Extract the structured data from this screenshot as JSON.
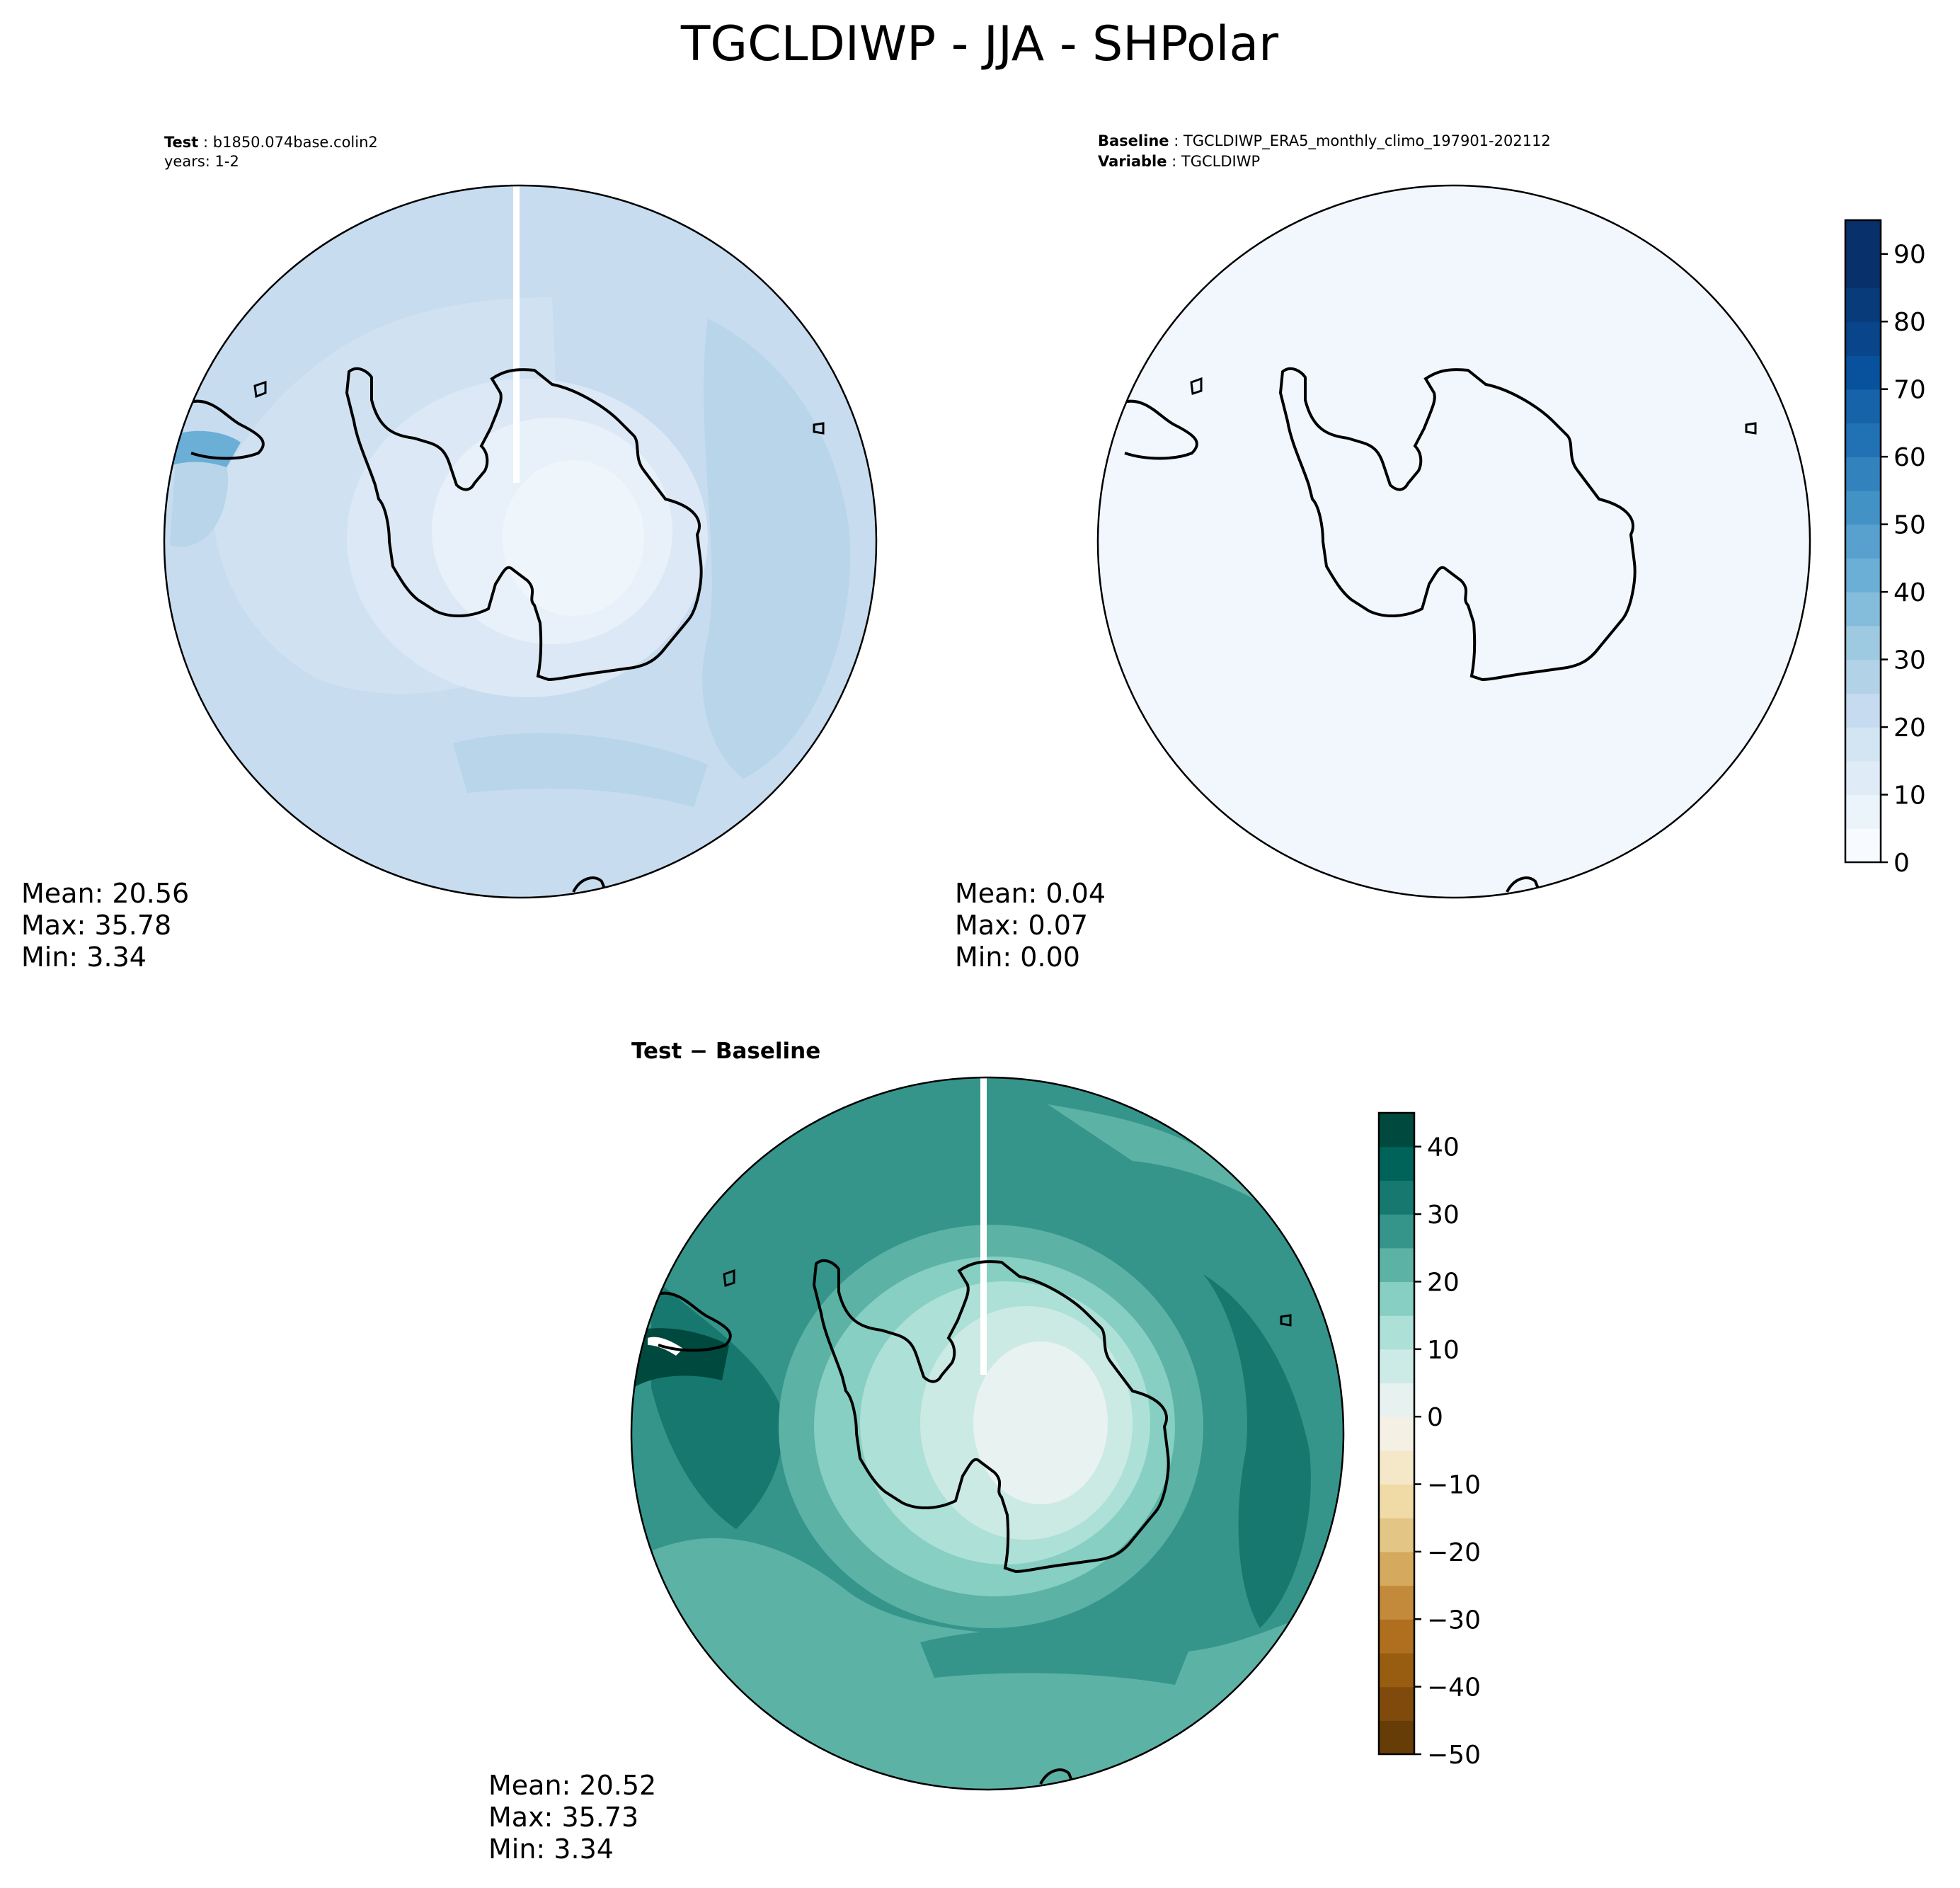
{
  "figure": {
    "title": "TGCLDIWP - JJA - SHPolar"
  },
  "chart_data": [
    {
      "type": "heatmap",
      "projection": "south-polar-stereographic",
      "panel": "test",
      "header": {
        "label": "Test",
        "case": "b1850.074base.colin2",
        "years": "years: 1-2"
      },
      "stats": {
        "mean": "Mean: 20.56",
        "max": "Max: 35.78",
        "min": "Min:  3.34"
      },
      "value_range": [
        3.34,
        35.78
      ],
      "colormap": "Blues",
      "colorbar": "shared"
    },
    {
      "type": "heatmap",
      "projection": "south-polar-stereographic",
      "panel": "baseline",
      "header": {
        "label": "Baseline",
        "case": "TGCLDIWP_ERA5_monthly_climo_197901-202112",
        "var_label": "Variable",
        "variable": "TGCLDIWP"
      },
      "stats": {
        "mean": "Mean:  0.04",
        "max": "Max:  0.07",
        "min": "Min:  0.00"
      },
      "value_range": [
        0.0,
        0.07
      ],
      "colormap": "Blues",
      "colorbar": {
        "range": [
          0,
          95
        ],
        "levels": 19,
        "ticks": [
          "0",
          "10",
          "20",
          "30",
          "40",
          "50",
          "60",
          "70",
          "80",
          "90"
        ],
        "colors": [
          "#f7fbff",
          "#ebf3fb",
          "#dfecf7",
          "#d3e4f3",
          "#c6dbef",
          "#b2d2e8",
          "#9ecae1",
          "#84bcdb",
          "#6baed6",
          "#58a1cf",
          "#4292c6",
          "#3282be",
          "#2171b5",
          "#1663aa",
          "#08519c",
          "#08458a",
          "#083b7a",
          "#08306b",
          "#08306b"
        ]
      }
    },
    {
      "type": "heatmap",
      "projection": "south-polar-stereographic",
      "panel": "difference",
      "header": {
        "title": "Test − Baseline"
      },
      "stats": {
        "mean": "Mean: 20.52",
        "max": "Max: 35.73",
        "min": "Min:  3.34"
      },
      "value_range": [
        3.34,
        35.73
      ],
      "colormap": "BrBG",
      "colorbar": {
        "range": [
          -50,
          45
        ],
        "levels": 19,
        "ticks": [
          "40",
          "30",
          "20",
          "10",
          "0",
          "−10",
          "−20",
          "−30",
          "−40",
          "−50"
        ],
        "colors": [
          "#663c07",
          "#7f4a0c",
          "#995d12",
          "#b06f1e",
          "#c38a3b",
          "#d5a95e",
          "#e3c685",
          "#f0dba6",
          "#f5e8c8",
          "#f5f0e4",
          "#e7f1ef",
          "#cdebe6",
          "#ade0d7",
          "#86cfc2",
          "#5cb2a5",
          "#35958a",
          "#17786f",
          "#00635a",
          "#00493e"
        ]
      }
    }
  ],
  "colors": {
    "test_palette": [
      "#e8f1fa",
      "#dce8f5",
      "#d0e2f2",
      "#c7dcef",
      "#b8d5ea",
      "#a9cee5"
    ],
    "baseline_fill": "#f2f7fd",
    "diff_palette": [
      "#e8f2f0",
      "#cbeae4",
      "#ade0d7",
      "#86cfc2",
      "#5cb2a5",
      "#35958a",
      "#17786f",
      "#00635a",
      "#00493e"
    ],
    "coastline": "#000000"
  }
}
